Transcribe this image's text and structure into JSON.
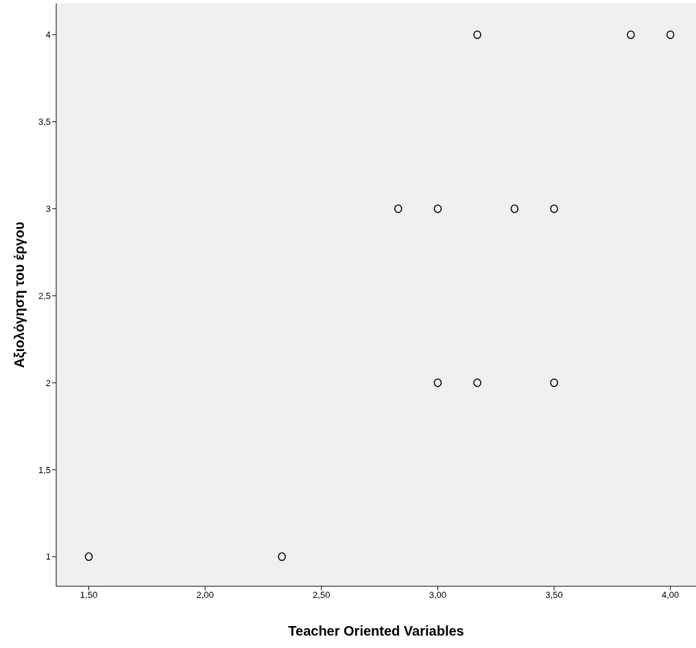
{
  "chart_data": {
    "type": "scatter",
    "xlabel": "Teacher Oriented Variables",
    "ylabel": "Αξιολόγηση του έργου",
    "x": [
      1.5,
      2.33,
      3,
      3.17,
      3.5,
      2.83,
      3,
      3.33,
      3.5,
      3.17,
      3.83,
      4
    ],
    "series": [
      {
        "color": "#000000",
        "values": [
          1,
          1,
          2,
          2,
          2,
          3,
          3,
          3,
          3,
          4,
          4,
          4
        ]
      }
    ],
    "xlim": [
      1.36,
      4.11
    ],
    "ylim": [
      0.83,
      4.18
    ],
    "xticks": [
      {
        "value": 1.5,
        "label": "1,50"
      },
      {
        "value": 2,
        "label": "2,00"
      },
      {
        "value": 2.5,
        "label": "2,50"
      },
      {
        "value": 3,
        "label": "3,00"
      },
      {
        "value": 3.5,
        "label": "3,50"
      },
      {
        "value": 4,
        "label": "4,00"
      }
    ],
    "yticks": [
      {
        "value": 1,
        "label": "1"
      },
      {
        "value": 1.5,
        "label": "1,5"
      },
      {
        "value": 2,
        "label": "2"
      },
      {
        "value": 2.5,
        "label": "2,5"
      },
      {
        "value": 3,
        "label": "3"
      },
      {
        "value": 3.5,
        "label": "3,5"
      },
      {
        "value": 4,
        "label": "4"
      }
    ],
    "grid": false,
    "legend": false,
    "marker": "circle"
  }
}
